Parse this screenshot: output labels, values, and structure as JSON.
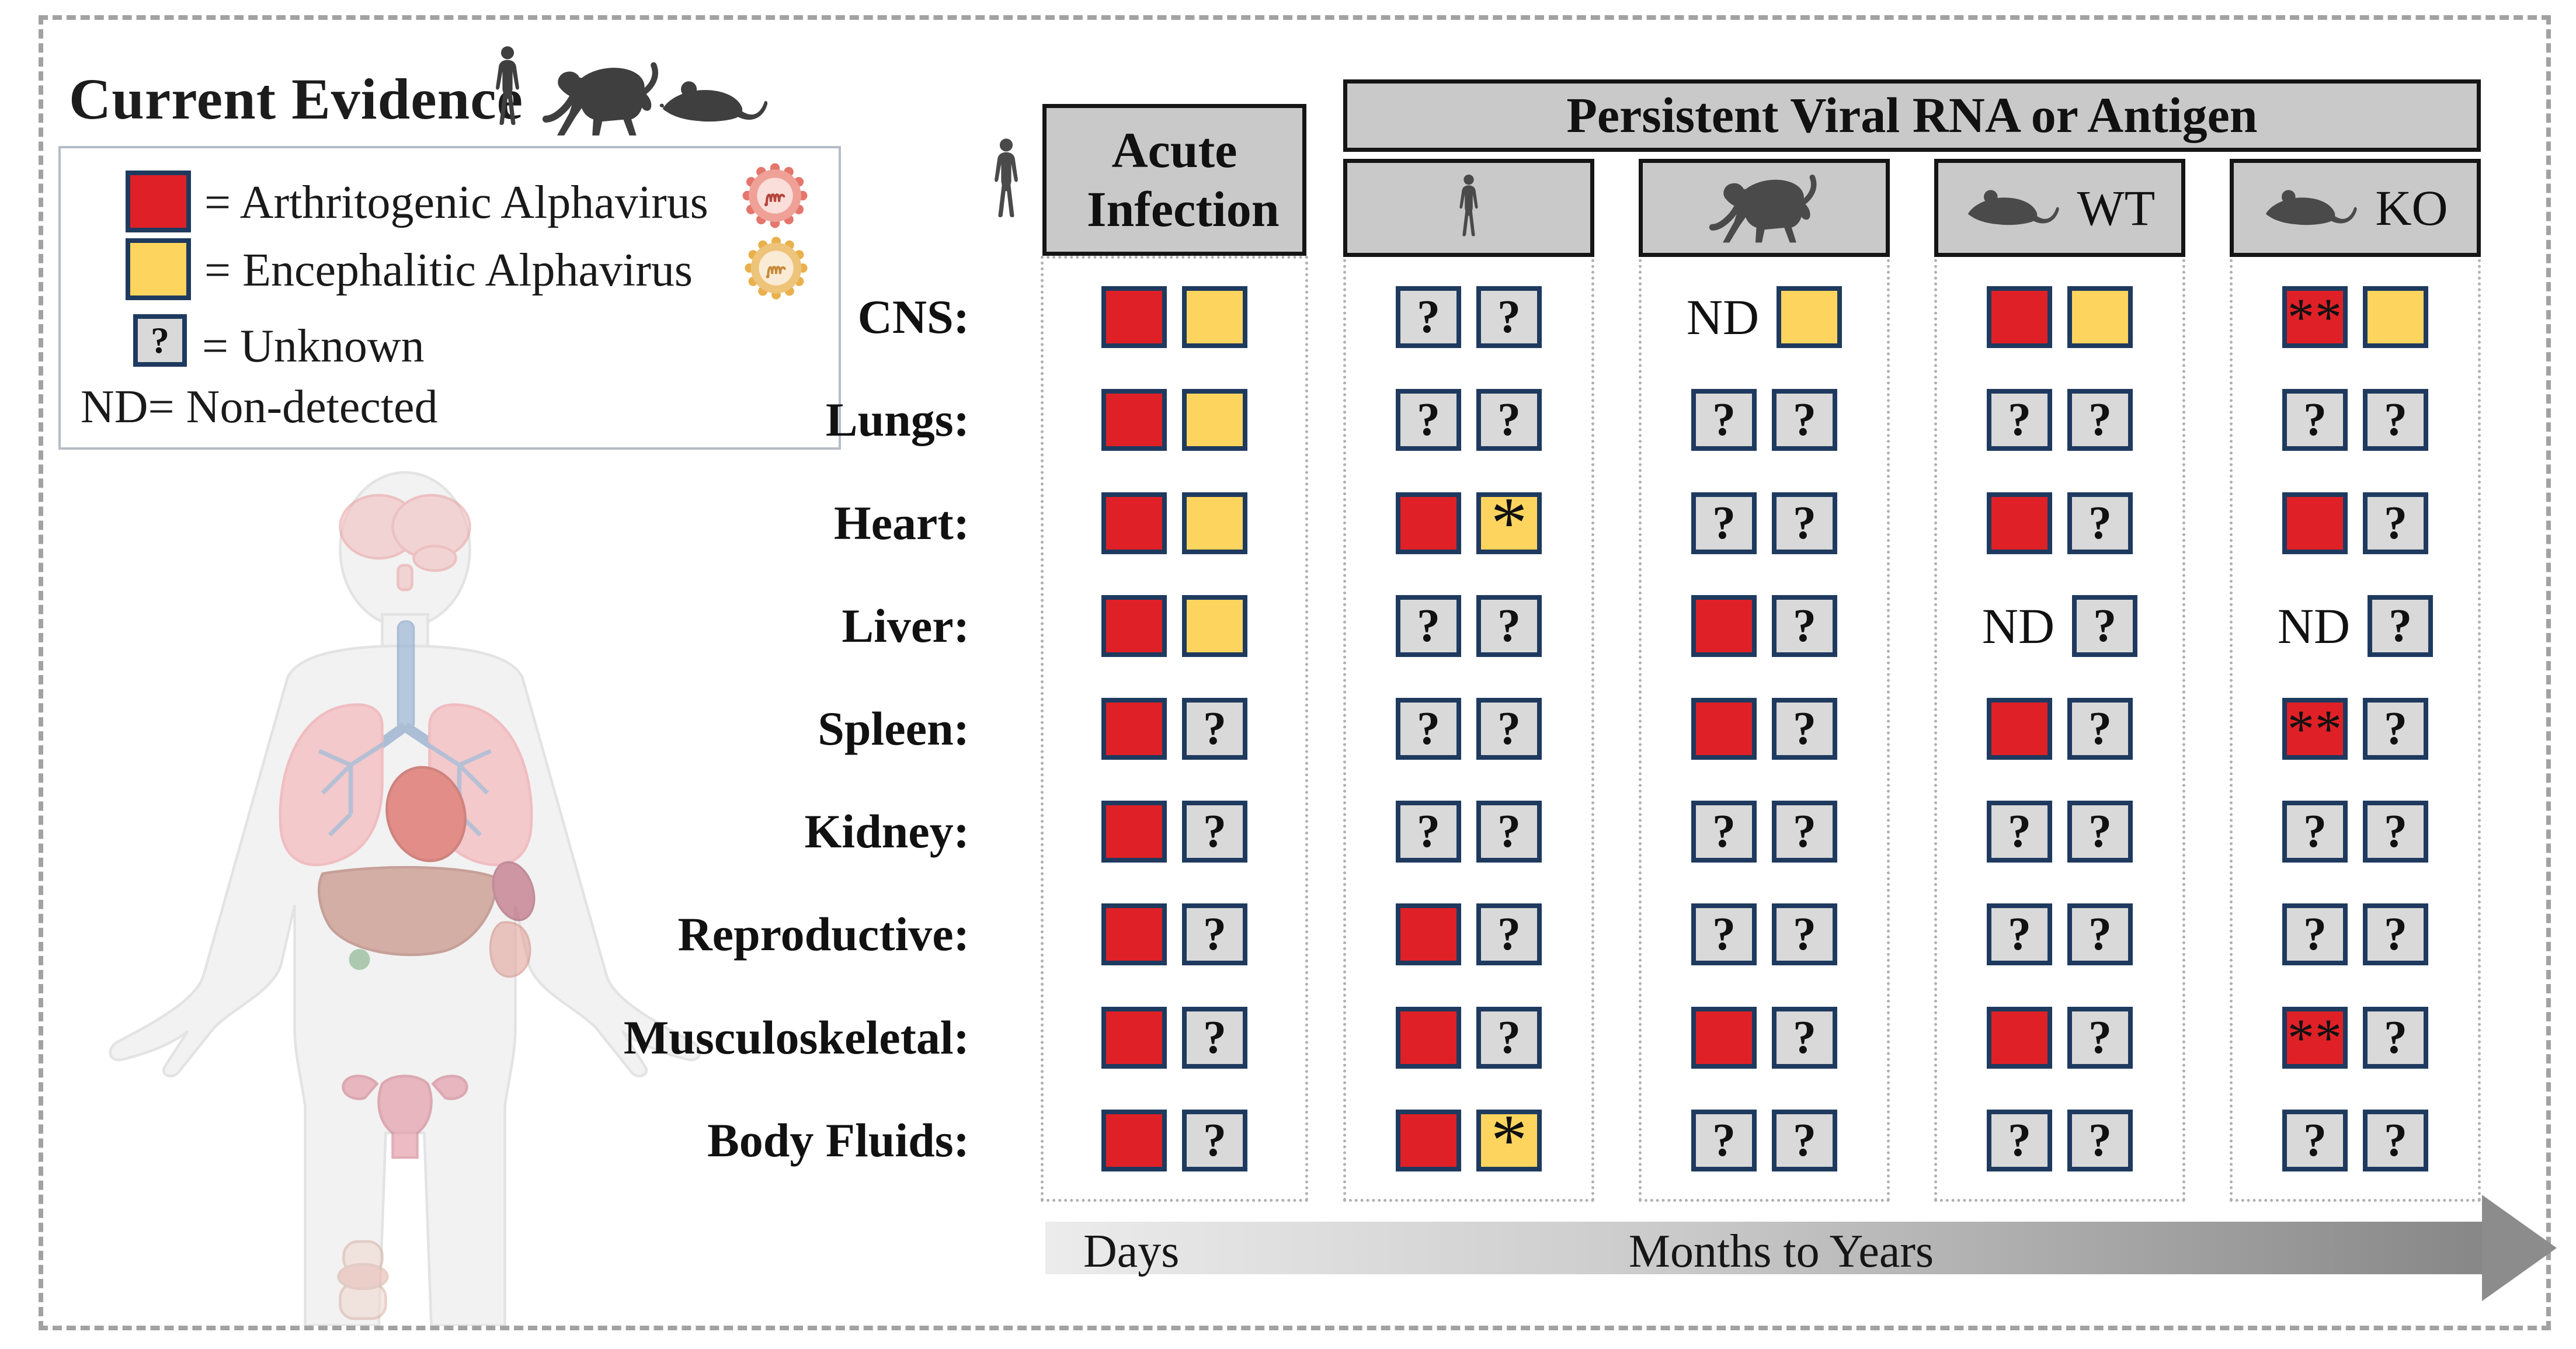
{
  "title": "Current Evidence",
  "legend": {
    "arthritogenic_label": "= Arthritogenic Alphavirus",
    "encephalitic_label": "= Encephalitic Alphavirus",
    "unknown_label": "= Unknown",
    "nd_label": "ND= Non-detected",
    "unknown_glyph": "?"
  },
  "colors": {
    "arthritogenic": "#df2127",
    "encephalitic": "#fdd55e",
    "unknown": "#d9d9d9",
    "square_border": "#1f3a5f",
    "header_fill": "#c9c9c9"
  },
  "nd_label": "ND",
  "table": {
    "acute_header": "Acute Infection",
    "persistent_header": "Persistent Viral RNA or Antigen",
    "columns": [
      {
        "id": "acute",
        "species": "human",
        "label": ""
      },
      {
        "id": "human",
        "species": "human",
        "label": ""
      },
      {
        "id": "monkey",
        "species": "monkey",
        "label": ""
      },
      {
        "id": "mouse_wt",
        "species": "mouse",
        "label": "WT"
      },
      {
        "id": "mouse_ko",
        "species": "mouse",
        "label": "KO"
      }
    ],
    "rows": [
      "CNS:",
      "Lungs:",
      "Heart:",
      "Liver:",
      "Spleen:",
      "Kidney:",
      "Reproductive:",
      "Musculoskeletal:",
      "Body Fluids:"
    ],
    "matrix": {
      "acute": [
        [
          "red",
          "yellow"
        ],
        [
          "red",
          "yellow"
        ],
        [
          "red",
          "yellow"
        ],
        [
          "red",
          "yellow"
        ],
        [
          "red",
          "?"
        ],
        [
          "red",
          "?"
        ],
        [
          "red",
          "?"
        ],
        [
          "red",
          "?"
        ],
        [
          "red",
          "?"
        ]
      ],
      "human": [
        [
          "?",
          "?"
        ],
        [
          "?",
          "?"
        ],
        [
          "red",
          "yellow*"
        ],
        [
          "?",
          "?"
        ],
        [
          "?",
          "?"
        ],
        [
          "?",
          "?"
        ],
        [
          "red",
          "?"
        ],
        [
          "red",
          "?"
        ],
        [
          "red",
          "yellow*"
        ]
      ],
      "monkey": [
        [
          "ND",
          "yellow"
        ],
        [
          "?",
          "?"
        ],
        [
          "?",
          "?"
        ],
        [
          "red",
          "?"
        ],
        [
          "red",
          "?"
        ],
        [
          "?",
          "?"
        ],
        [
          "?",
          "?"
        ],
        [
          "red",
          "?"
        ],
        [
          "?",
          "?"
        ]
      ],
      "mouse_wt": [
        [
          "red",
          "yellow"
        ],
        [
          "?",
          "?"
        ],
        [
          "red",
          "?"
        ],
        [
          "ND",
          "?"
        ],
        [
          "red",
          "?"
        ],
        [
          "?",
          "?"
        ],
        [
          "?",
          "?"
        ],
        [
          "red",
          "?"
        ],
        [
          "?",
          "?"
        ]
      ],
      "mouse_ko": [
        [
          "red**",
          "yellow"
        ],
        [
          "?",
          "?"
        ],
        [
          "red",
          "?"
        ],
        [
          "ND",
          "?"
        ],
        [
          "red**",
          "?"
        ],
        [
          "?",
          "?"
        ],
        [
          "?",
          "?"
        ],
        [
          "red**",
          "?"
        ],
        [
          "?",
          "?"
        ]
      ]
    }
  },
  "timeline": {
    "left_label": "Days",
    "right_label": "Months to Years"
  }
}
